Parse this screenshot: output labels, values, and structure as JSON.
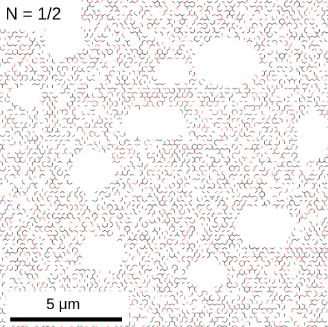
{
  "label": "N = 1/2",
  "scale_bar": {
    "label": "5 μm"
  }
}
